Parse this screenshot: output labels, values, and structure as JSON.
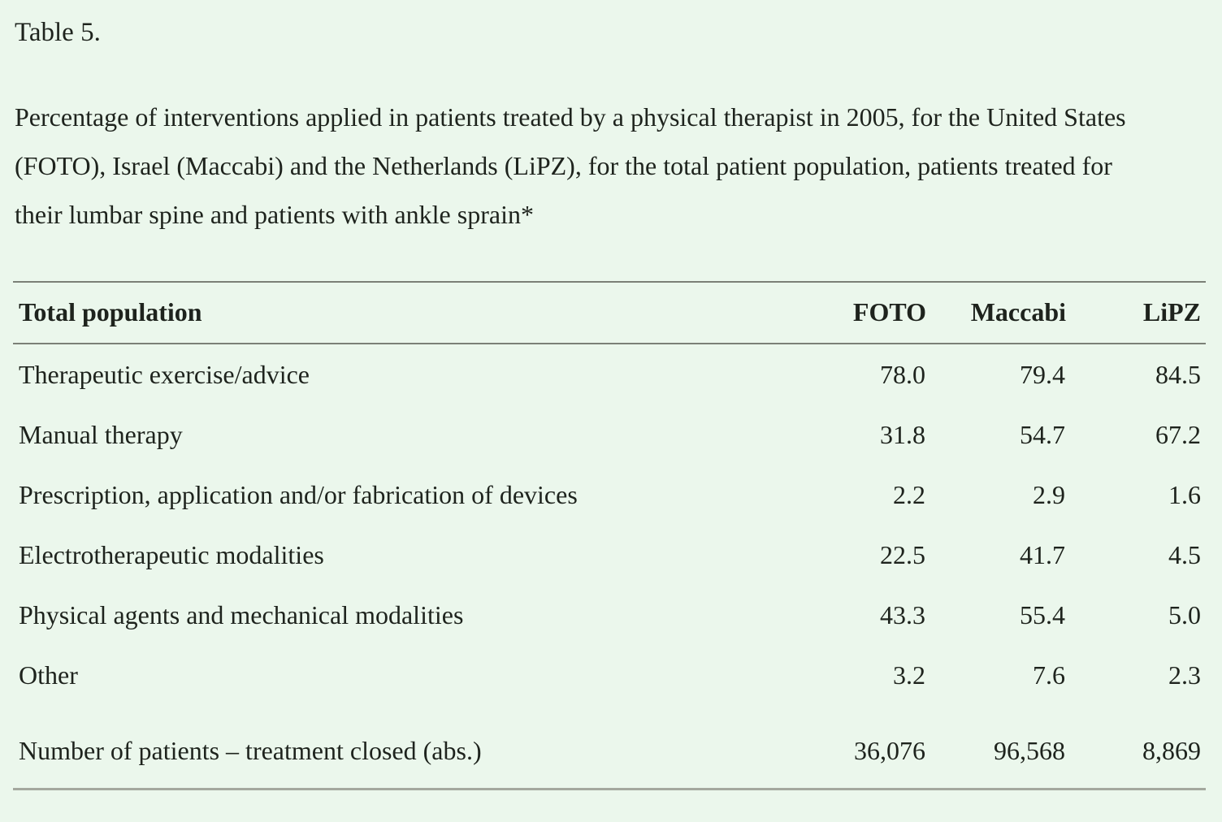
{
  "page": {
    "background_color": "#ebf7ec",
    "text_color": "#1e231d",
    "rule_color": "#7b8077",
    "bottom_rule_color": "#a4a89e",
    "title": "Table 5.",
    "caption": "Percentage of interventions applied in patients treated by a physical therapist in 2005, for the United States (FOTO), Israel (Maccabi) and the Netherlands (LiPZ), for the total patient population, patients treated for their lumbar spine and patients with ankle sprain*"
  },
  "table": {
    "header": {
      "label": "Total population",
      "columns": [
        "FOTO",
        "Maccabi",
        "LiPZ"
      ]
    },
    "rows": [
      {
        "label": "Therapeutic exercise/advice",
        "values": [
          "78.0",
          "79.4",
          "84.5"
        ]
      },
      {
        "label": "Manual therapy",
        "values": [
          "31.8",
          "54.7",
          "67.2"
        ]
      },
      {
        "label": "Prescription, application and/or fabrication of devices",
        "values": [
          "2.2",
          "2.9",
          "1.6"
        ]
      },
      {
        "label": "Electrotherapeutic modalities",
        "values": [
          "22.5",
          "41.7",
          "4.5"
        ]
      },
      {
        "label": "Physical agents and mechanical modalities",
        "values": [
          "43.3",
          "55.4",
          "5.0"
        ]
      },
      {
        "label": "Other",
        "values": [
          "3.2",
          "7.6",
          "2.3"
        ]
      },
      {
        "label": "Number of patients – treatment closed (abs.)",
        "values": [
          "36,076",
          "96,568",
          "8,869"
        ]
      }
    ]
  },
  "chart_data": {
    "type": "table",
    "title": "Percentage of interventions applied in patients treated by a physical therapist in 2005 (total population)",
    "columns": [
      "Total population",
      "FOTO",
      "Maccabi",
      "LiPZ"
    ],
    "rows": [
      [
        "Therapeutic exercise/advice",
        78.0,
        79.4,
        84.5
      ],
      [
        "Manual therapy",
        31.8,
        54.7,
        67.2
      ],
      [
        "Prescription, application and/or fabrication of devices",
        2.2,
        2.9,
        1.6
      ],
      [
        "Electrotherapeutic modalities",
        22.5,
        41.7,
        4.5
      ],
      [
        "Physical agents and mechanical modalities",
        43.3,
        55.4,
        5.0
      ],
      [
        "Other",
        3.2,
        7.6,
        2.3
      ],
      [
        "Number of patients – treatment closed (abs.)",
        "36,076",
        "96,568",
        "8,869"
      ]
    ]
  }
}
